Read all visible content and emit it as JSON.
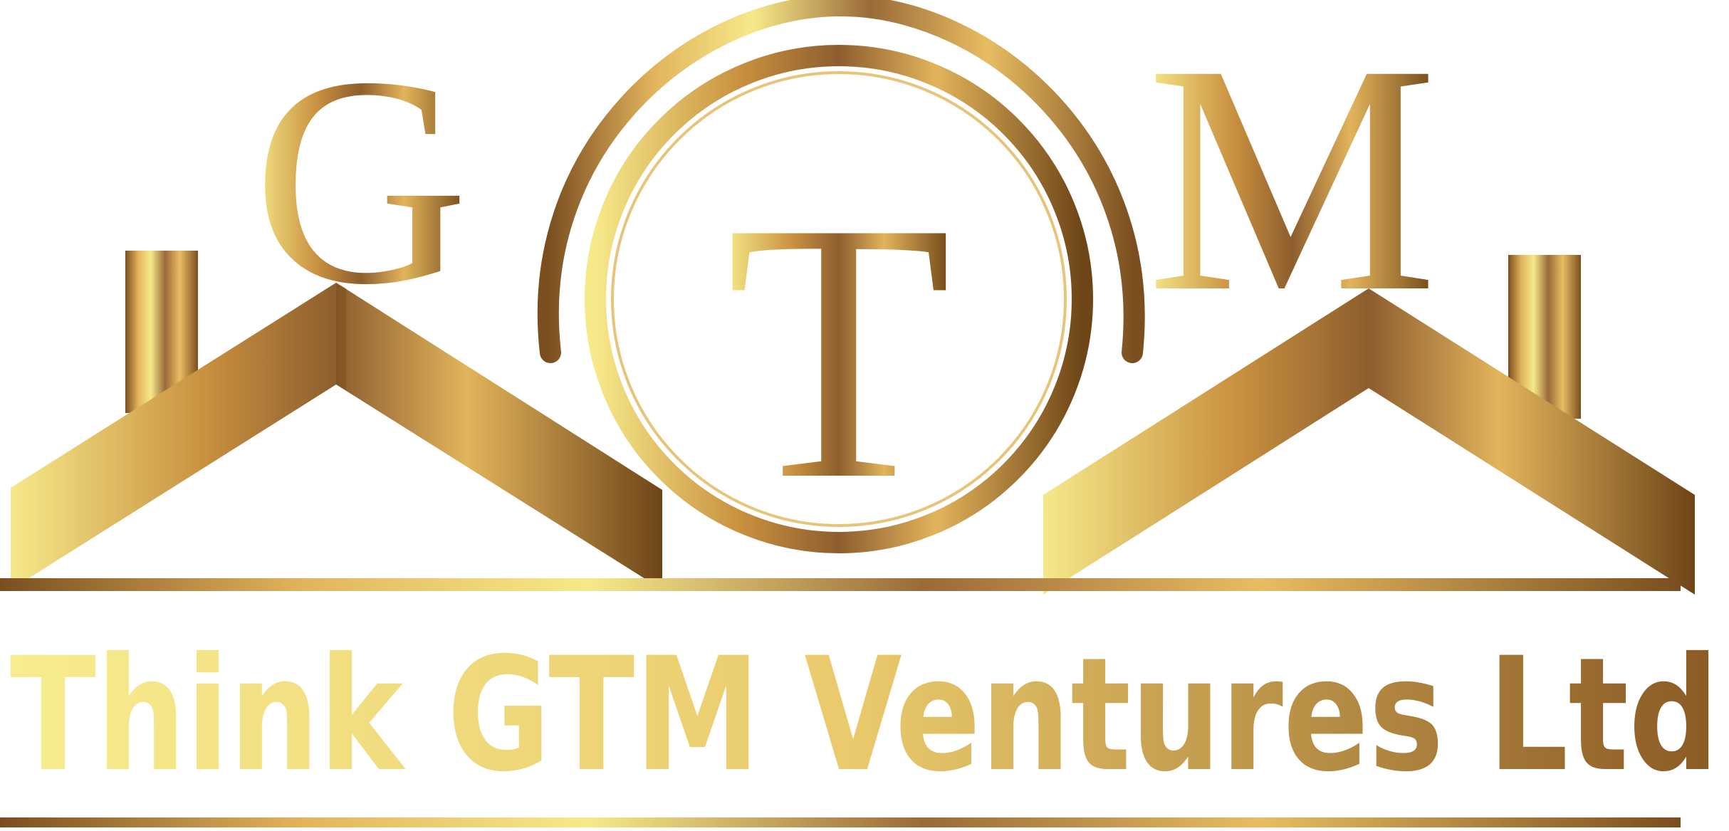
{
  "logo": {
    "letters": [
      "G",
      "T",
      "M"
    ],
    "company_name": "Think GTM Ventures Ltd",
    "colors": {
      "gold_light": "#f6e98a",
      "gold_mid": "#e2b45c",
      "gold_dark": "#8d5e2e",
      "bronze_deep": "#6e4517"
    },
    "emblem": "house-roof-with-circle-monogram"
  }
}
